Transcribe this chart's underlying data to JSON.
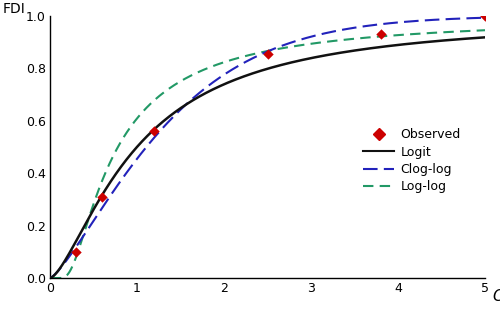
{
  "observed_x": [
    0.3,
    0.6,
    1.2,
    2.5,
    3.8,
    5.0
  ],
  "observed_y": [
    0.1,
    0.31,
    0.56,
    0.855,
    0.93,
    1.0
  ],
  "logit_a": 0.0,
  "logit_b": 1.5,
  "cloglog_a": -0.5,
  "cloglog_b": 1.3,
  "loglog_a": 0.55,
  "loglog_b": 1.3,
  "x_min": 0.0,
  "x_max": 5.0,
  "y_min": 0.0,
  "y_max": 1.0,
  "xlabel": "C",
  "ylabel": "FDI",
  "xticks": [
    0,
    1,
    2,
    3,
    4,
    5
  ],
  "yticks": [
    0,
    0.2,
    0.4,
    0.6,
    0.8,
    1
  ],
  "observed_color": "#cc0000",
  "logit_color": "#111111",
  "cloglog_color": "#2222bb",
  "loglog_color": "#229966",
  "background_color": "#ffffff"
}
